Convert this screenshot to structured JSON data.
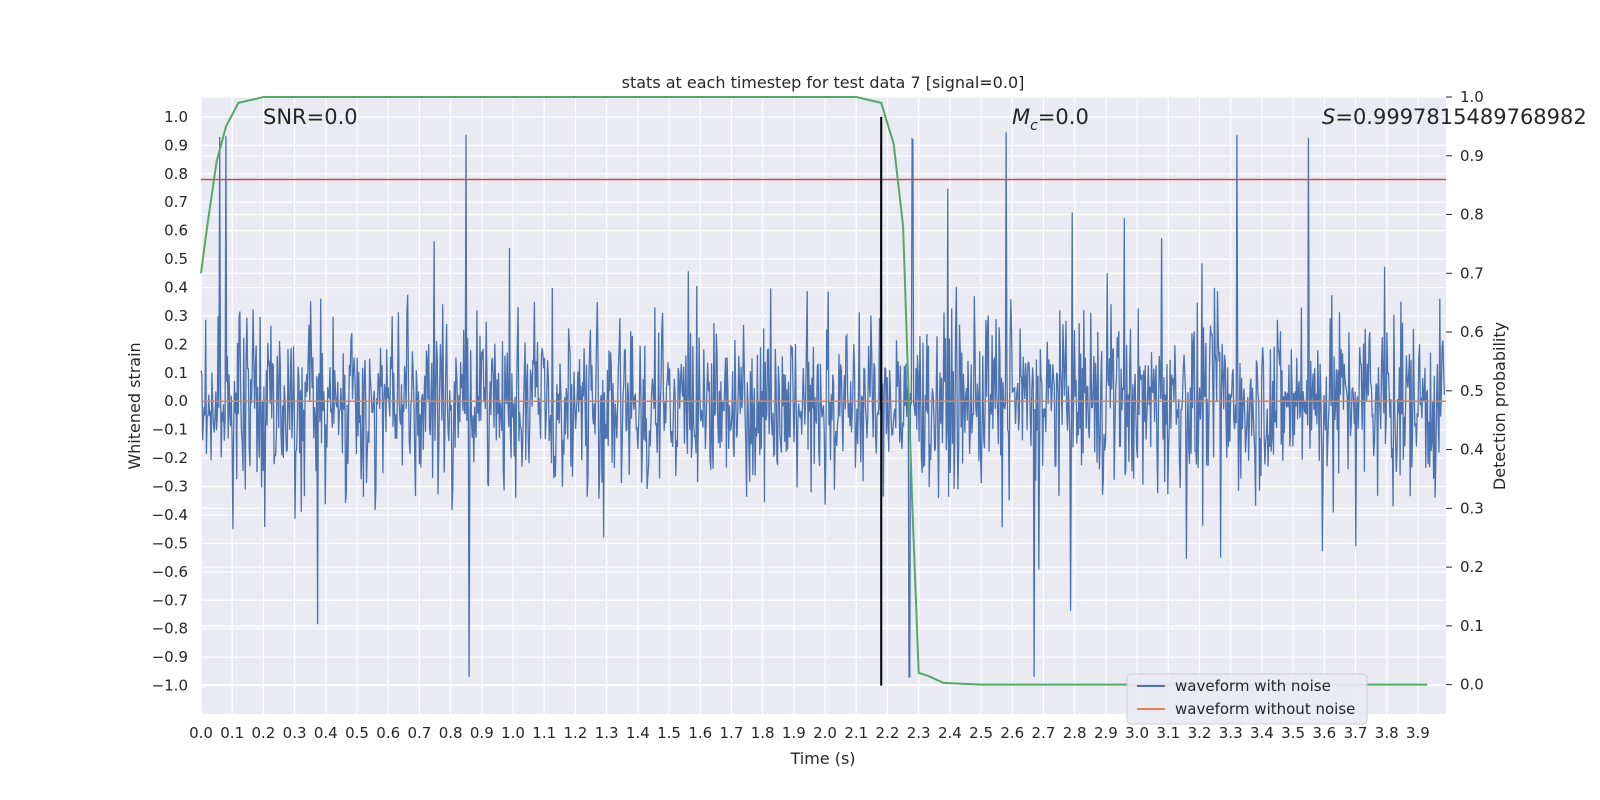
{
  "chart_data": {
    "type": "line",
    "title": "stats at each timestep for test data 7 [signal=0.0]",
    "xlabel": "Time (s)",
    "ylabel": "Whitened strain",
    "y2label": "Detection probability",
    "xlim": [
      0.0,
      3.99
    ],
    "ylim": [
      -1.1,
      1.07
    ],
    "y2lim": [
      -0.05,
      1.0
    ],
    "xticks": [
      "0.0",
      "0.1",
      "0.2",
      "0.3",
      "0.4",
      "0.5",
      "0.6",
      "0.7",
      "0.8",
      "0.9",
      "1.0",
      "1.1",
      "1.2",
      "1.3",
      "1.4",
      "1.5",
      "1.6",
      "1.7",
      "1.8",
      "1.9",
      "2.0",
      "2.1",
      "2.2",
      "2.3",
      "2.4",
      "2.5",
      "2.6",
      "2.7",
      "2.8",
      "2.9",
      "3.0",
      "3.1",
      "3.2",
      "3.3",
      "3.4",
      "3.5",
      "3.6",
      "3.7",
      "3.8",
      "3.9"
    ],
    "yticks": [
      "1.0",
      "0.9",
      "0.8",
      "0.7",
      "0.6",
      "0.5",
      "0.4",
      "0.3",
      "0.2",
      "0.1",
      "0.0",
      "−0.1",
      "−0.2",
      "−0.3",
      "−0.4",
      "−0.5",
      "−0.6",
      "−0.7",
      "−0.8",
      "−0.9",
      "−1.0"
    ],
    "y2ticks": [
      "1.0",
      "0.9",
      "0.8",
      "0.7",
      "0.6",
      "0.5",
      "0.4",
      "0.3",
      "0.2",
      "0.1",
      "0.0"
    ],
    "grid": true,
    "legend_position": "bottom-right",
    "series": [
      {
        "name": "waveform with noise",
        "color": "#4c72b0",
        "axis": "left",
        "description_values": {
          "peak_positive": [
            0.06,
            0.08,
            0.85,
            0.86,
            2.18,
            2.28,
            2.58,
            3.32,
            3.55
          ],
          "peak_negative": [
            0.86,
            2.27,
            2.67
          ]
        }
      },
      {
        "name": "waveform without noise",
        "color": "#dd8452",
        "axis": "left",
        "x": [
          0.0,
          3.99
        ],
        "y": [
          0.0,
          0.0
        ]
      },
      {
        "color": "#55a868",
        "axis": "right",
        "x": [
          0.0,
          0.02,
          0.05,
          0.08,
          0.12,
          0.2,
          0.5,
          1.0,
          1.5,
          2.0,
          2.1,
          2.18,
          2.22,
          2.25,
          2.28,
          2.3,
          2.33,
          2.38,
          2.5,
          3.0,
          3.5,
          3.93
        ],
        "y": [
          0.7,
          0.78,
          0.89,
          0.95,
          0.99,
          1.0,
          1.0,
          1.0,
          1.0,
          1.0,
          1.0,
          0.99,
          0.92,
          0.78,
          0.3,
          0.02,
          0.015,
          0.003,
          0.0,
          0.0,
          0.0,
          0.0
        ]
      },
      {
        "color": "#c44e52",
        "axis": "left",
        "x": [
          0.0,
          3.99
        ],
        "y": [
          0.78,
          0.78
        ]
      }
    ],
    "vertical_line": {
      "x": 2.18,
      "y_range": [
        -1.0,
        1.0
      ],
      "color": "#000000"
    },
    "annotations": {
      "snr": "SNR=0.0",
      "mc_symbol": "M",
      "mc_sub": "c",
      "mc_value": "=0.0",
      "s_symbol": "S",
      "s_value": "=0.9997815489768982"
    }
  }
}
